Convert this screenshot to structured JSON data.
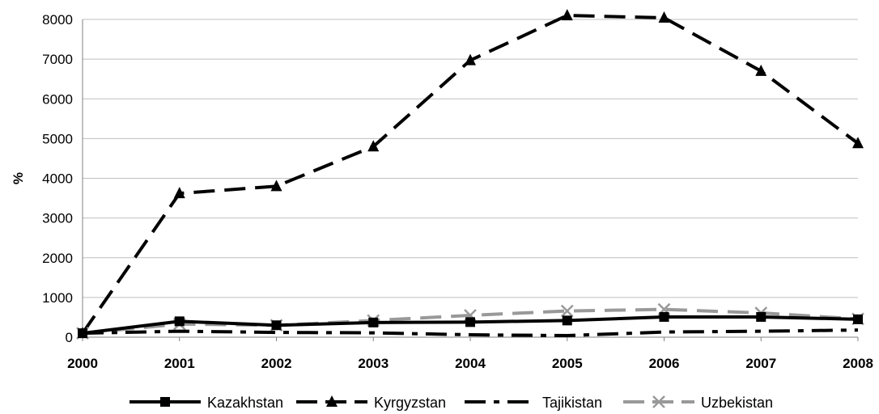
{
  "chart_data": {
    "type": "line",
    "x": [
      "2000",
      "2001",
      "2002",
      "2003",
      "2004",
      "2005",
      "2006",
      "2007",
      "2008"
    ],
    "ylabel": "%",
    "xlabel": "",
    "ylim": [
      0,
      8000
    ],
    "yticks": [
      0,
      1000,
      2000,
      3000,
      4000,
      5000,
      6000,
      7000,
      8000
    ],
    "grid": "horizontal",
    "legend_position": "bottom",
    "series": [
      {
        "name": "Kazakhstan",
        "color": "#000000",
        "dash": "solid",
        "marker": "square",
        "values": [
          100,
          400,
          300,
          370,
          380,
          420,
          510,
          510,
          450
        ]
      },
      {
        "name": "Kyrgyzstan",
        "color": "#000000",
        "dash": "long-dash",
        "marker": "triangle",
        "values": [
          100,
          3620,
          3800,
          4800,
          6970,
          8100,
          8040,
          6700,
          4880
        ]
      },
      {
        "name": "Tajikistan",
        "color": "#000000",
        "dash": "dash-dot",
        "marker": "none",
        "values": [
          100,
          150,
          120,
          110,
          60,
          40,
          130,
          150,
          180
        ]
      },
      {
        "name": "Uzbekistan",
        "color": "#999999",
        "dash": "long-dash",
        "marker": "x",
        "values": [
          100,
          330,
          300,
          420,
          550,
          660,
          700,
          610,
          460
        ]
      }
    ]
  }
}
